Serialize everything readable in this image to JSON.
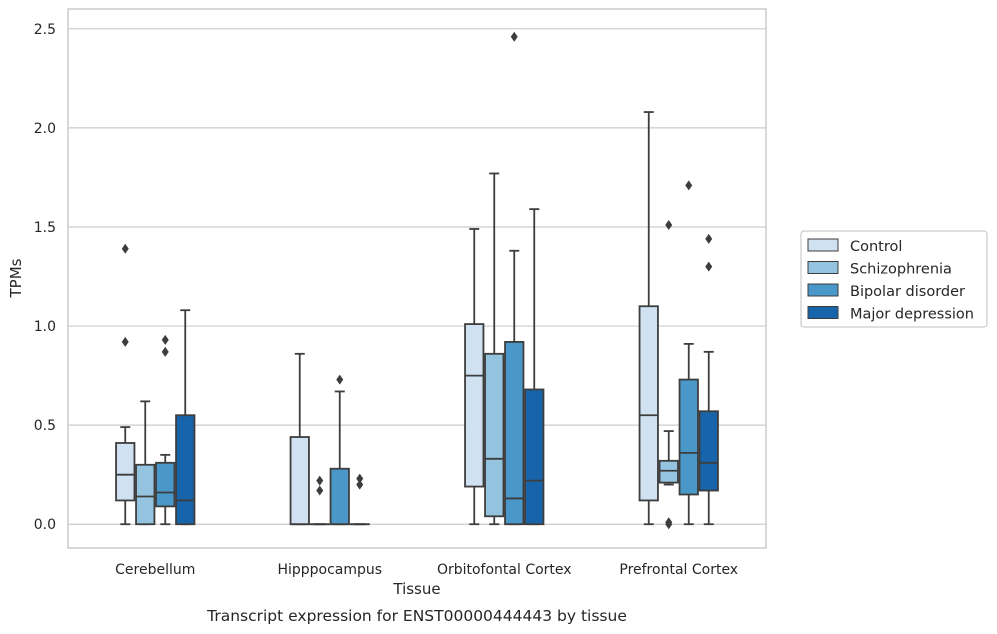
{
  "chart_data": {
    "type": "box",
    "xlabel": "Tissue",
    "ylabel": "TPMs",
    "caption": "Transcript expression for ENST00000444443 by tissue",
    "ylim": [
      -0.12,
      2.6
    ],
    "yticks": [
      0.0,
      0.5,
      1.0,
      1.5,
      2.0,
      2.5
    ],
    "ytick_labels": [
      "0.0",
      "0.5",
      "1.0",
      "1.5",
      "2.0",
      "2.5"
    ],
    "grid": "horizontal",
    "legend_position": "right",
    "categories": [
      "Cerebellum",
      "Hipppocampus",
      "Orbitofontal Cortex",
      "Prefrontal Cortex"
    ],
    "series": [
      {
        "name": "Control",
        "color": "#d0e1f2",
        "boxes": [
          {
            "q1": 0.12,
            "median": 0.25,
            "q3": 0.41,
            "whisker_low": 0.0,
            "whisker_high": 0.49,
            "outliers": [
              0.92,
              1.39
            ]
          },
          {
            "q1": 0.0,
            "median": 0.0,
            "q3": 0.44,
            "whisker_low": 0.0,
            "whisker_high": 0.86,
            "outliers": []
          },
          {
            "q1": 0.19,
            "median": 0.75,
            "q3": 1.01,
            "whisker_low": 0.0,
            "whisker_high": 1.49,
            "outliers": []
          },
          {
            "q1": 0.12,
            "median": 0.55,
            "q3": 1.1,
            "whisker_low": 0.0,
            "whisker_high": 2.08,
            "outliers": []
          }
        ]
      },
      {
        "name": "Schizophrenia",
        "color": "#94c4df",
        "boxes": [
          {
            "q1": 0.0,
            "median": 0.14,
            "q3": 0.3,
            "whisker_low": 0.0,
            "whisker_high": 0.62,
            "outliers": []
          },
          {
            "q1": 0.0,
            "median": 0.0,
            "q3": 0.0,
            "whisker_low": 0.0,
            "whisker_high": 0.0,
            "outliers": [
              0.17,
              0.22
            ]
          },
          {
            "q1": 0.04,
            "median": 0.33,
            "q3": 0.86,
            "whisker_low": 0.0,
            "whisker_high": 1.77,
            "outliers": []
          },
          {
            "q1": 0.21,
            "median": 0.27,
            "q3": 0.32,
            "whisker_low": 0.2,
            "whisker_high": 0.47,
            "outliers": [
              0.0,
              0.01,
              1.51
            ]
          }
        ]
      },
      {
        "name": "Bipolar disorder",
        "color": "#4a98c9",
        "boxes": [
          {
            "q1": 0.09,
            "median": 0.16,
            "q3": 0.31,
            "whisker_low": 0.0,
            "whisker_high": 0.35,
            "outliers": [
              0.87,
              0.93
            ]
          },
          {
            "q1": 0.0,
            "median": 0.0,
            "q3": 0.28,
            "whisker_low": 0.0,
            "whisker_high": 0.67,
            "outliers": [
              0.73
            ]
          },
          {
            "q1": 0.0,
            "median": 0.13,
            "q3": 0.92,
            "whisker_low": 0.0,
            "whisker_high": 1.38,
            "outliers": [
              2.46
            ]
          },
          {
            "q1": 0.15,
            "median": 0.36,
            "q3": 0.73,
            "whisker_low": 0.0,
            "whisker_high": 0.91,
            "outliers": [
              1.71
            ]
          }
        ]
      },
      {
        "name": "Major depression",
        "color": "#1764ab",
        "boxes": [
          {
            "q1": 0.0,
            "median": 0.12,
            "q3": 0.55,
            "whisker_low": 0.0,
            "whisker_high": 1.08,
            "outliers": []
          },
          {
            "q1": 0.0,
            "median": 0.0,
            "q3": 0.0,
            "whisker_low": 0.0,
            "whisker_high": 0.0,
            "outliers": [
              0.2,
              0.23
            ]
          },
          {
            "q1": 0.0,
            "median": 0.22,
            "q3": 0.68,
            "whisker_low": 0.0,
            "whisker_high": 1.59,
            "outliers": []
          },
          {
            "q1": 0.17,
            "median": 0.31,
            "q3": 0.57,
            "whisker_low": 0.0,
            "whisker_high": 0.87,
            "outliers": [
              1.3,
              1.44
            ]
          }
        ]
      }
    ]
  }
}
